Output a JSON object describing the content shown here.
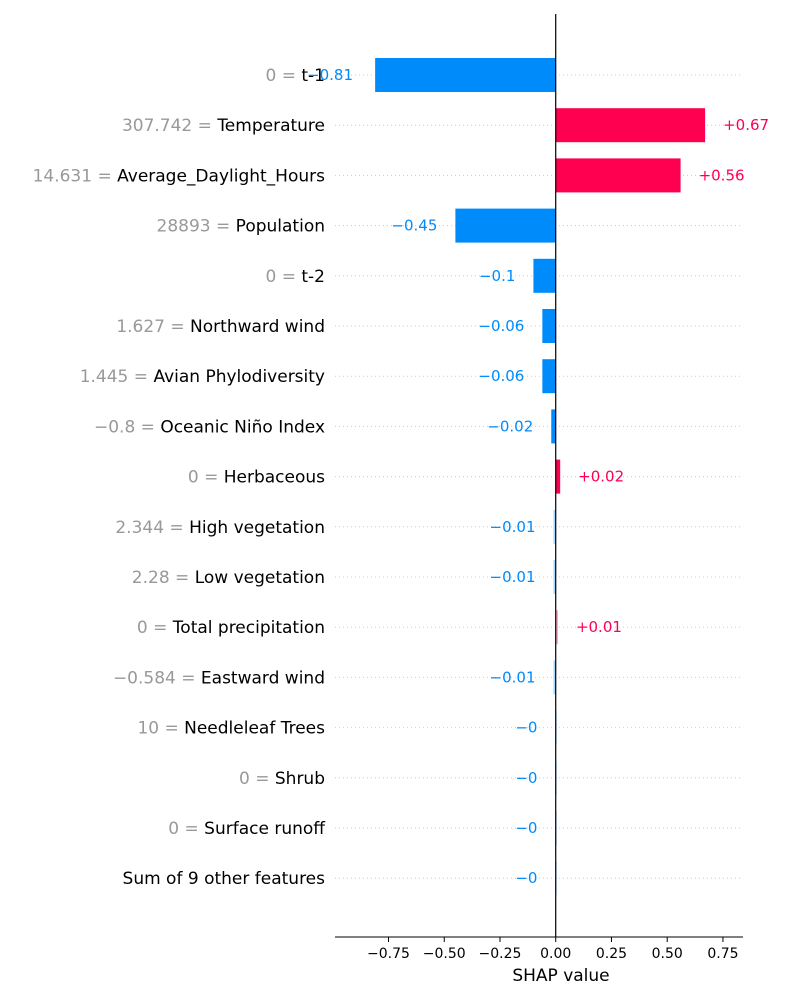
{
  "chart_data": {
    "type": "bar",
    "orientation": "horizontal",
    "xlabel": "SHAP value",
    "xlim": [
      -0.99,
      0.84
    ],
    "xticks": [
      "−0.75",
      "−0.50",
      "−0.25",
      "0.00",
      "0.25",
      "0.50",
      "0.75"
    ],
    "xtick_values": [
      -0.75,
      -0.5,
      -0.25,
      0,
      0.25,
      0.5,
      0.75
    ],
    "colors": {
      "positive": "#ff0051",
      "negative": "#008bfb",
      "zero_line": "#000000",
      "grid": "#cccccc",
      "feature_value": "#999999"
    },
    "features": [
      {
        "value": "0",
        "name": "t-1",
        "shap": -0.81,
        "label": "−0.81"
      },
      {
        "value": "307.742",
        "name": "Temperature",
        "shap": 0.67,
        "label": "+0.67"
      },
      {
        "value": "14.631",
        "name": "Average_Daylight_Hours",
        "shap": 0.56,
        "label": "+0.56"
      },
      {
        "value": "28893",
        "name": "Population",
        "shap": -0.45,
        "label": "−0.45"
      },
      {
        "value": "0",
        "name": "t-2",
        "shap": -0.1,
        "label": "−0.1"
      },
      {
        "value": "1.627",
        "name": "Northward wind",
        "shap": -0.06,
        "label": "−0.06"
      },
      {
        "value": "1.445",
        "name": "Avian Phylodiversity",
        "shap": -0.06,
        "label": "−0.06"
      },
      {
        "value": "−0.8",
        "name": "Oceanic Niño Index",
        "shap": -0.02,
        "label": "−0.02"
      },
      {
        "value": "0",
        "name": "Herbaceous",
        "shap": 0.02,
        "label": "+0.02"
      },
      {
        "value": "2.344",
        "name": "High vegetation",
        "shap": -0.01,
        "label": "−0.01"
      },
      {
        "value": "2.28",
        "name": "Low vegetation",
        "shap": -0.01,
        "label": "−0.01"
      },
      {
        "value": "0",
        "name": "Total precipitation",
        "shap": 0.01,
        "label": "+0.01"
      },
      {
        "value": "−0.584",
        "name": "Eastward wind",
        "shap": -0.01,
        "label": "−0.01"
      },
      {
        "value": "10",
        "name": "Needleleaf Trees",
        "shap": -0.001,
        "label": "−0"
      },
      {
        "value": "0",
        "name": "Shrub",
        "shap": -0.001,
        "label": "−0"
      },
      {
        "value": "0",
        "name": "Surface runoff",
        "shap": -0.001,
        "label": "−0"
      },
      {
        "value": "",
        "name": "Sum of 9 other features",
        "shap": -0.001,
        "label": "−0"
      }
    ]
  }
}
